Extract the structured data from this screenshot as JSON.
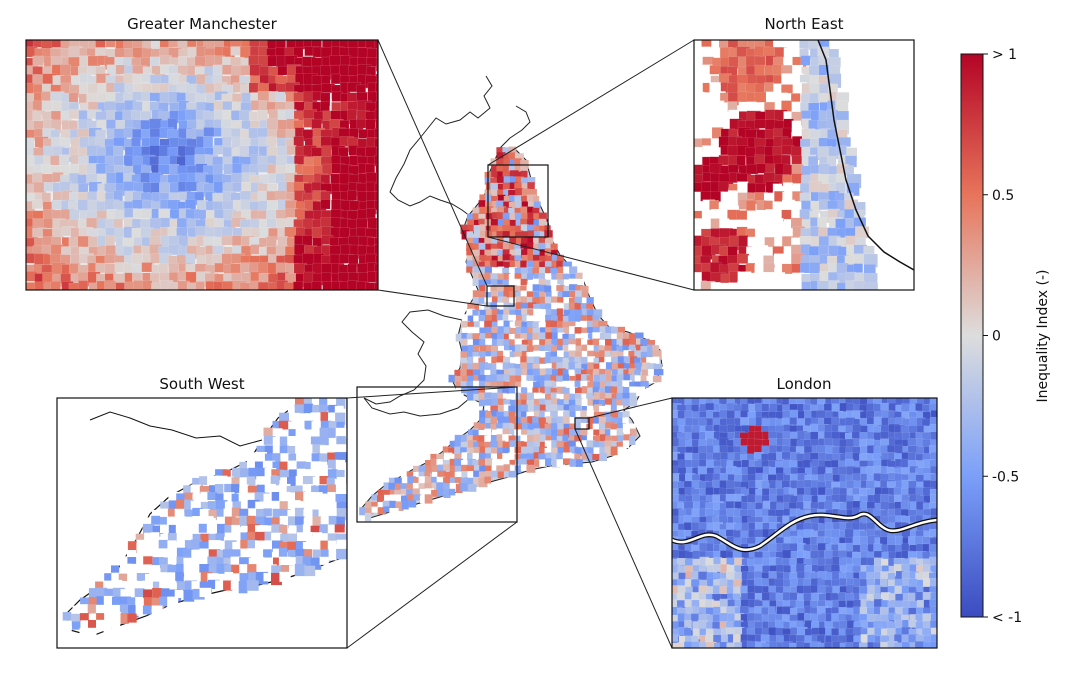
{
  "insets": {
    "manchester": {
      "title": "Greater Manchester"
    },
    "north_east": {
      "title": "North East"
    },
    "south_west": {
      "title": "South West"
    },
    "london": {
      "title": "London"
    }
  },
  "colorbar": {
    "label": "Inequality Index (-)",
    "ticks": [
      "> 1",
      "0.5",
      "0",
      "-0.5",
      "< -1"
    ],
    "tick_values": [
      1,
      0.5,
      0,
      -0.5,
      -1
    ],
    "colors": [
      "#b40426",
      "#e7745b",
      "#dddddd",
      "#7b9ff9",
      "#3b4cc0"
    ]
  }
}
